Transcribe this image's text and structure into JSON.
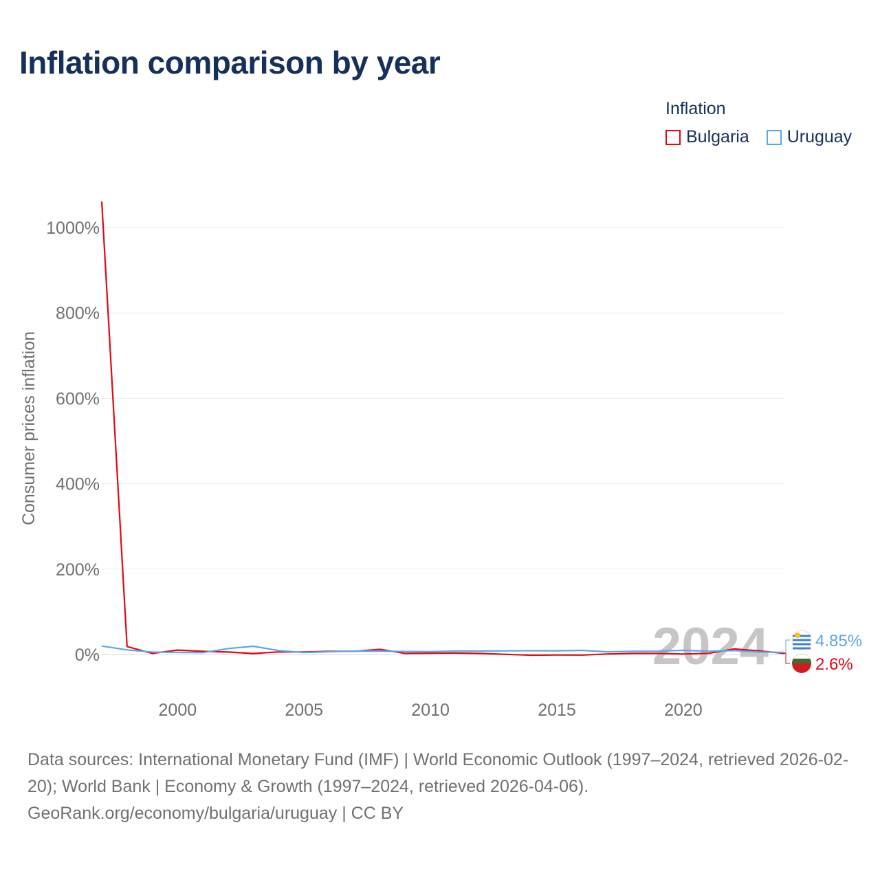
{
  "title": "Inflation comparison by year",
  "legend": {
    "title": "Inflation",
    "items": [
      {
        "label": "Bulgaria",
        "color": "#e30613"
      },
      {
        "label": "Uruguay",
        "color": "#5aa7e6"
      }
    ]
  },
  "chart_data": {
    "type": "line",
    "ylabel": "Consumer prices inflation",
    "xlabel": "",
    "xlim": [
      1997,
      2024
    ],
    "ylim": [
      -100,
      1100
    ],
    "y_ticks": [
      0,
      200,
      400,
      600,
      800,
      1000
    ],
    "y_tick_labels": [
      "0%",
      "200%",
      "400%",
      "600%",
      "800%",
      "1000%"
    ],
    "x_ticks": [
      2000,
      2005,
      2010,
      2015,
      2020
    ],
    "x_tick_labels": [
      "2000",
      "2005",
      "2010",
      "2015",
      "2020"
    ],
    "grid": true,
    "watermark_year": "2024",
    "x": [
      1997,
      1998,
      1999,
      2000,
      2001,
      2002,
      2003,
      2004,
      2005,
      2006,
      2007,
      2008,
      2009,
      2010,
      2011,
      2012,
      2013,
      2014,
      2015,
      2016,
      2017,
      2018,
      2019,
      2020,
      2021,
      2022,
      2023,
      2024
    ],
    "series": [
      {
        "name": "Bulgaria",
        "color": "#e30613",
        "values": [
          1061,
          18.7,
          2.6,
          10.3,
          7.4,
          5.8,
          2.3,
          6.1,
          6.0,
          7.4,
          7.6,
          12.0,
          2.5,
          3.0,
          3.4,
          2.4,
          0.4,
          -1.6,
          -1.1,
          -1.3,
          1.2,
          2.6,
          2.5,
          1.2,
          2.8,
          13.0,
          8.6,
          2.6
        ]
      },
      {
        "name": "Uruguay",
        "color": "#5aa7e6",
        "values": [
          19.8,
          10.8,
          5.7,
          4.8,
          4.4,
          14.0,
          19.4,
          9.2,
          4.7,
          6.4,
          8.1,
          7.9,
          7.1,
          6.7,
          8.1,
          8.1,
          8.6,
          8.9,
          8.7,
          9.6,
          6.2,
          7.6,
          7.9,
          9.8,
          7.7,
          9.1,
          5.9,
          4.85
        ]
      }
    ],
    "end_labels": [
      {
        "series": "Uruguay",
        "text": "4.85%"
      },
      {
        "series": "Bulgaria",
        "text": "2.6%"
      }
    ]
  },
  "sources": {
    "line1": "Data sources: International Monetary Fund (IMF) | World Economic Outlook (1997–2024, retrieved 2026-02-20); World Bank | Economy & Growth (1997–2024, retrieved 2026-04-06).",
    "line2": "GeoRank.org/economy/bulgaria/uruguay | CC BY"
  }
}
